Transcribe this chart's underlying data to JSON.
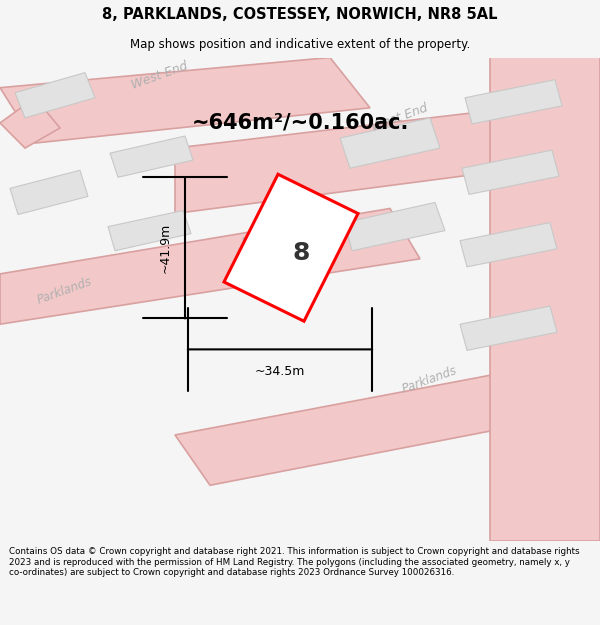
{
  "title": "8, PARKLANDS, COSTESSEY, NORWICH, NR8 5AL",
  "subtitle": "Map shows position and indicative extent of the property.",
  "area_text": "~646m²/~0.160ac.",
  "width_label": "~34.5m",
  "height_label": "~41.9m",
  "footer": "Contains OS data © Crown copyright and database right 2021. This information is subject to Crown copyright and database rights 2023 and is reproduced with the permission of HM Land Registry. The polygons (including the associated geometry, namely x, y co-ordinates) are subject to Crown copyright and database rights 2023 Ordnance Survey 100026316.",
  "bg_color": "#f5f5f5",
  "map_bg": "#f9f9f9",
  "road_fill": "#f2c8c8",
  "road_edge": "#d9a0a0",
  "building_fill": "#e2e2e2",
  "building_edge": "#c8c8c8",
  "property_fill": "#ffffff",
  "property_edge": "#ff0000",
  "street_color": "#b0b0b0",
  "title_color": "#000000",
  "footer_color": "#000000",
  "dim_color": "#000000"
}
